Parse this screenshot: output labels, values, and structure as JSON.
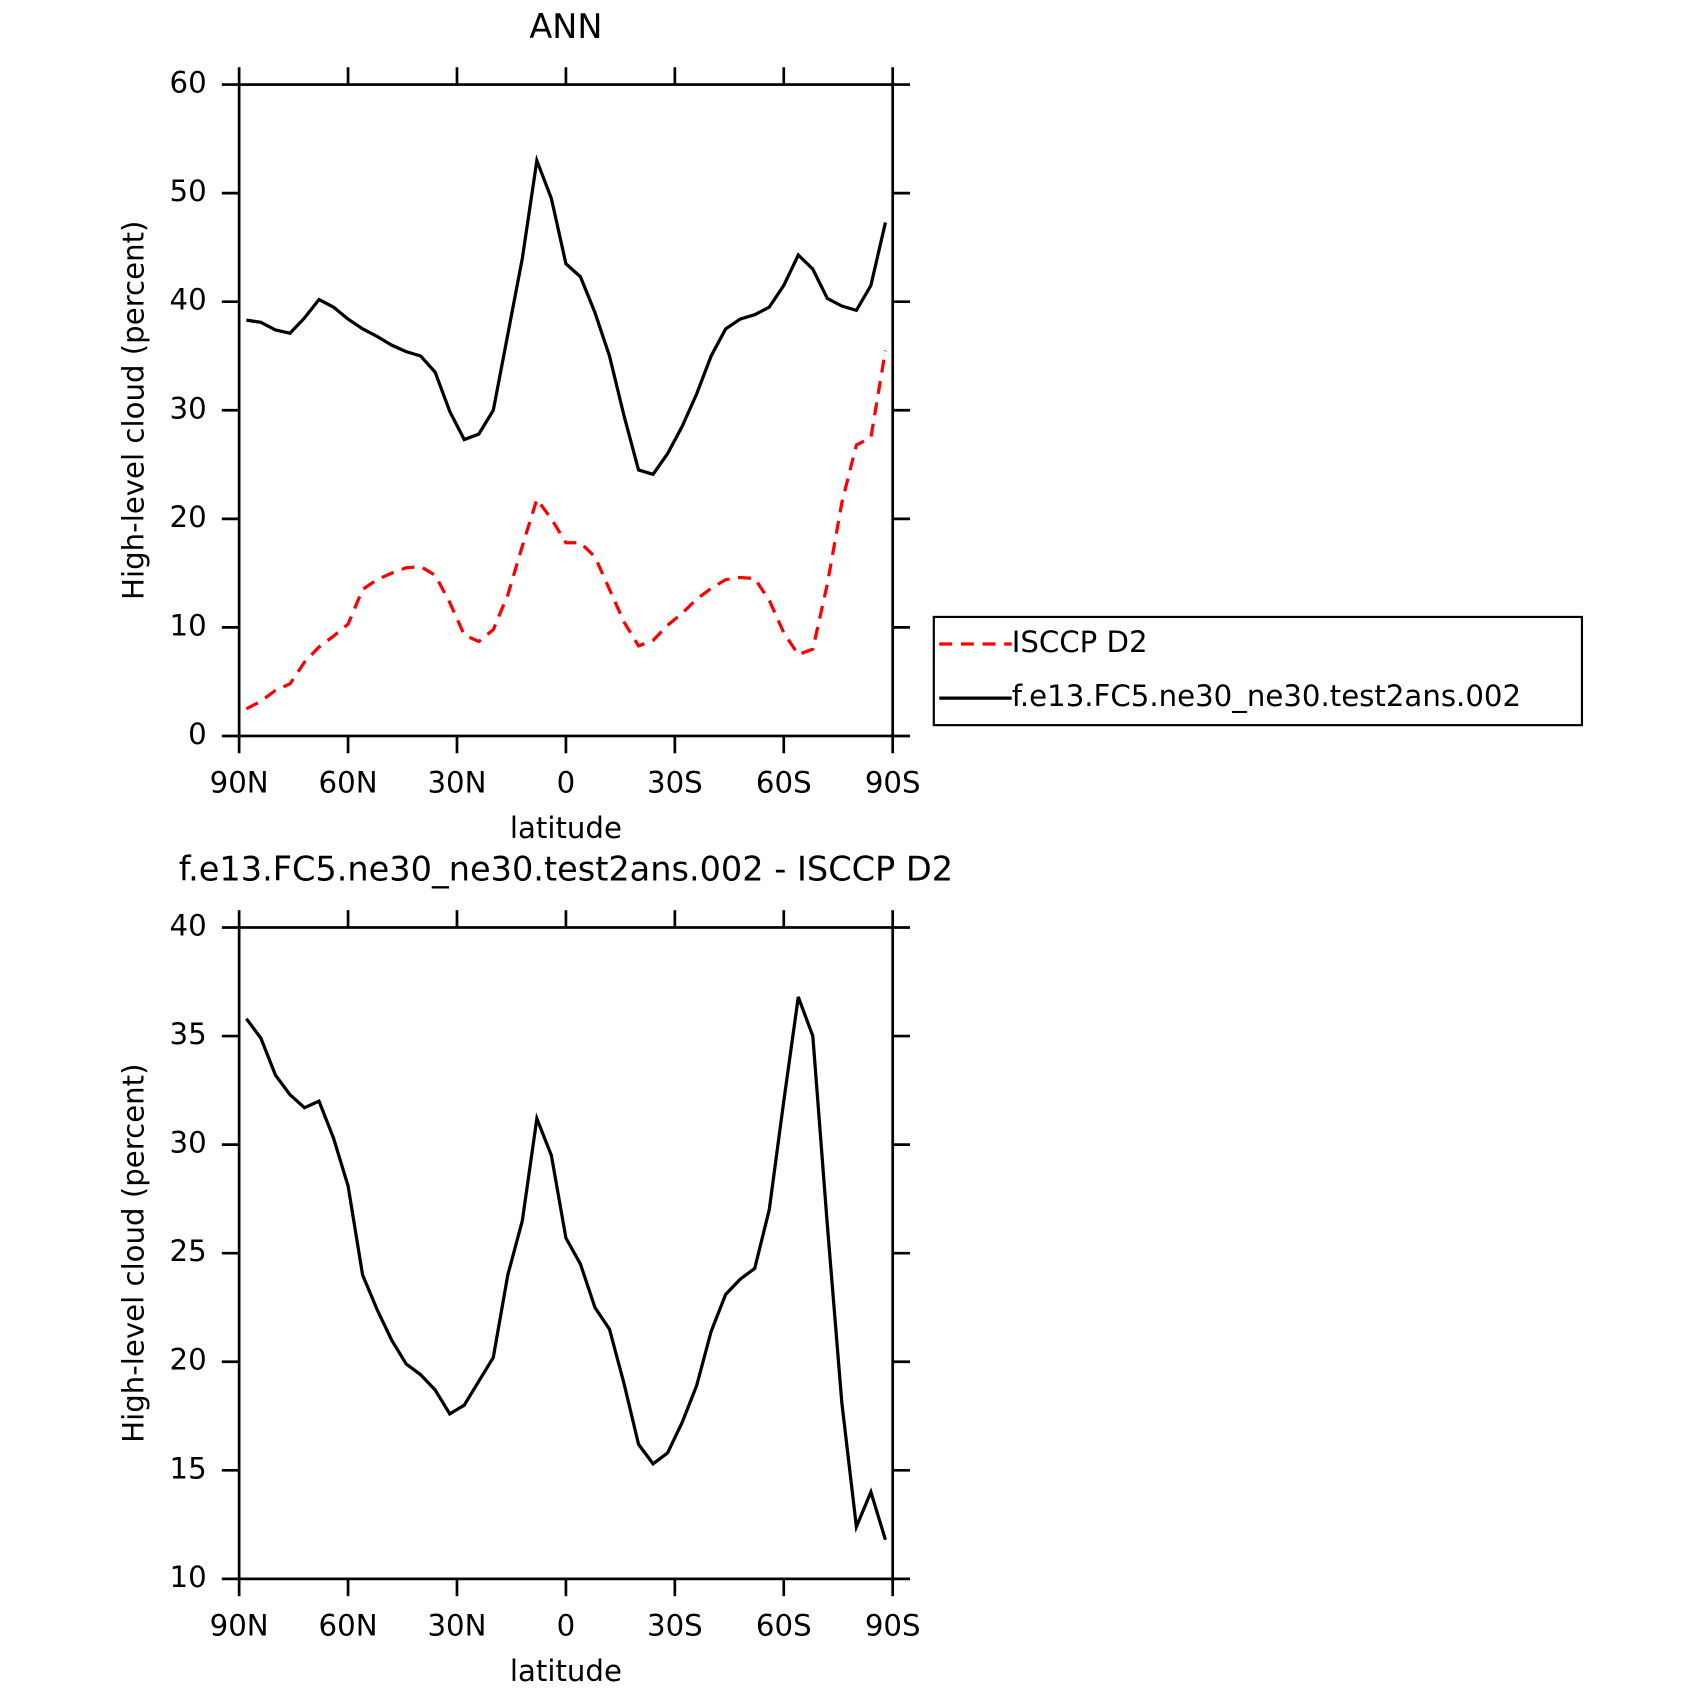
{
  "chart_data": [
    {
      "type": "line",
      "title": "ANN",
      "xlabel": "latitude",
      "ylabel": "High-level cloud (percent)",
      "x": [
        88,
        84,
        80,
        76,
        72,
        68,
        64,
        60,
        56,
        52,
        48,
        44,
        40,
        36,
        32,
        28,
        24,
        20,
        16,
        12,
        8,
        4,
        0,
        -4,
        -8,
        -12,
        -16,
        -20,
        -24,
        -28,
        -32,
        -36,
        -40,
        -44,
        -48,
        -52,
        -56,
        -60,
        -64,
        -68,
        -72,
        -76,
        -80,
        -84,
        -88
      ],
      "series": [
        {
          "name": "ISCCP D2",
          "color": "#ff0000",
          "linestyle": "dashed",
          "values": [
            2.5,
            3.2,
            4.2,
            4.8,
            6.8,
            8.2,
            9.2,
            10.3,
            13.5,
            14.4,
            15.0,
            15.5,
            15.6,
            14.8,
            12.3,
            9.3,
            8.7,
            9.8,
            13,
            17.5,
            21.8,
            20.0,
            17.8,
            17.8,
            16.5,
            13.5,
            10.5,
            8.3,
            8.8,
            10.2,
            11.3,
            12.6,
            13.6,
            14.4,
            14.6,
            14.5,
            12.5,
            9.5,
            7.5,
            8.0,
            14,
            21.5,
            26.8,
            27.5,
            35.5
          ]
        },
        {
          "name": "f.e13.FC5.ne30_ne30.test2ans.002",
          "color": "#000000",
          "linestyle": "solid",
          "values": [
            38.3,
            38.1,
            37.4,
            37.1,
            38.5,
            40.2,
            39.5,
            38.4,
            37.5,
            36.8,
            36.0,
            35.4,
            35.0,
            33.5,
            29.9,
            27.3,
            27.8,
            30.0,
            37.0,
            44.0,
            53.0,
            49.5,
            43.5,
            42.3,
            39.0,
            35.0,
            29.5,
            24.5,
            24.1,
            26.0,
            28.5,
            31.5,
            35.0,
            37.5,
            38.4,
            38.8,
            39.5,
            41.5,
            44.3,
            43.0,
            40.3,
            39.6,
            39.2,
            41.5,
            47.3
          ]
        }
      ],
      "xlim": [
        90,
        -90
      ],
      "xticks": [
        {
          "value": 90,
          "label": "90N"
        },
        {
          "value": 60,
          "label": "60N"
        },
        {
          "value": 30,
          "label": "30N"
        },
        0,
        {
          "value": -30,
          "label": "30S"
        },
        {
          "value": -60,
          "label": "60S"
        },
        {
          "value": -90,
          "label": "90S"
        }
      ],
      "ylim": [
        0,
        60
      ],
      "yticks": [
        0,
        10,
        20,
        30,
        40,
        50,
        60
      ],
      "legend": "right"
    },
    {
      "type": "line",
      "title": "f.e13.FC5.ne30_ne30.test2ans.002 - ISCCP D2",
      "xlabel": "latitude",
      "ylabel": "High-level cloud (percent)",
      "x": [
        88,
        84,
        80,
        76,
        72,
        68,
        64,
        60,
        56,
        52,
        48,
        44,
        40,
        36,
        32,
        28,
        24,
        20,
        16,
        12,
        8,
        4,
        0,
        -4,
        -8,
        -12,
        -16,
        -20,
        -24,
        -28,
        -32,
        -36,
        -40,
        -44,
        -48,
        -52,
        -56,
        -60,
        -64,
        -68,
        -72,
        -76,
        -80,
        -84,
        -88
      ],
      "series": [
        {
          "color": "#000000",
          "linestyle": "solid",
          "values": [
            35.8,
            34.9,
            33.2,
            32.3,
            31.7,
            32.0,
            30.3,
            28.1,
            24.0,
            22.4,
            21.0,
            19.9,
            19.4,
            18.7,
            17.6,
            18.0,
            19.1,
            20.2,
            24.0,
            26.5,
            31.2,
            29.5,
            25.7,
            24.5,
            22.5,
            21.5,
            19.0,
            16.2,
            15.3,
            15.8,
            17.2,
            18.9,
            21.4,
            23.1,
            23.8,
            24.3,
            27.0,
            32.0,
            36.8,
            35.0,
            26.3,
            18.1,
            12.4,
            14.0,
            11.8
          ]
        }
      ],
      "xlim": [
        90,
        -90
      ],
      "xticks": [
        {
          "value": 90,
          "label": "90N"
        },
        {
          "value": 60,
          "label": "60N"
        },
        {
          "value": 30,
          "label": "30N"
        },
        0,
        {
          "value": -30,
          "label": "30S"
        },
        {
          "value": -60,
          "label": "60S"
        },
        {
          "value": -90,
          "label": "90S"
        }
      ],
      "ylim": [
        10,
        40
      ],
      "yticks": [
        10,
        15,
        20,
        25,
        30,
        35,
        40
      ]
    }
  ]
}
